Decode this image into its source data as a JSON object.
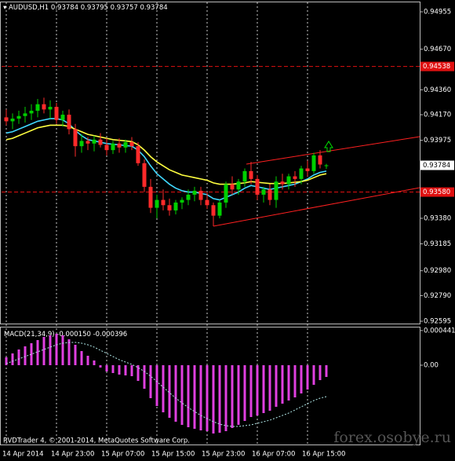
{
  "chart_data": [
    {
      "type": "candlestick",
      "symbol": "AUDUSD,H1",
      "categories": [
        "14 Apr 2014",
        null,
        null,
        null,
        null,
        null,
        null,
        null,
        "14 Apr 23:00",
        null,
        null,
        null,
        null,
        null,
        null,
        null,
        "15 Apr 07:00",
        null,
        null,
        null,
        null,
        null,
        null,
        null,
        "15 Apr 15:00",
        null,
        null,
        null,
        null,
        null,
        null,
        null,
        "15 Apr 23:00",
        null,
        null,
        null,
        null,
        null,
        null,
        null,
        "16 Apr 07:00",
        null,
        null,
        null,
        null,
        null,
        null,
        null,
        "16 Apr 15:00",
        null,
        null,
        null
      ],
      "open": [
        0.9415,
        0.9412,
        0.9414,
        0.9416,
        0.9418,
        0.942,
        0.9425,
        0.9421,
        0.9423,
        0.9413,
        0.9417,
        0.9406,
        0.9393,
        0.9397,
        0.9395,
        0.9398,
        0.9394,
        0.939,
        0.9395,
        0.9392,
        0.9396,
        0.9393,
        0.938,
        0.9362,
        0.9346,
        0.9352,
        0.9348,
        0.9344,
        0.935,
        0.9352,
        0.9356,
        0.9359,
        0.9352,
        0.9348,
        0.934,
        0.935,
        0.9364,
        0.936,
        0.9366,
        0.9374,
        0.9368,
        0.9356,
        0.936,
        0.9352,
        0.9366,
        0.9364,
        0.937,
        0.9368,
        0.9376,
        0.9374,
        0.9386,
        0.93784
      ],
      "high": [
        0.9421,
        0.9418,
        0.942,
        0.9423,
        0.9425,
        0.9429,
        0.943,
        0.9428,
        0.9426,
        0.942,
        0.9421,
        0.941,
        0.9402,
        0.94,
        0.9401,
        0.9403,
        0.9399,
        0.9397,
        0.9399,
        0.9398,
        0.94,
        0.9396,
        0.9383,
        0.9368,
        0.9356,
        0.936,
        0.9353,
        0.9352,
        0.9354,
        0.936,
        0.9362,
        0.9362,
        0.9358,
        0.935,
        0.9352,
        0.9366,
        0.937,
        0.9368,
        0.9376,
        0.9381,
        0.9371,
        0.9362,
        0.9364,
        0.937,
        0.9372,
        0.9372,
        0.9374,
        0.9378,
        0.9382,
        0.9388,
        0.939,
        0.93795
      ],
      "low": [
        0.9409,
        0.9406,
        0.941,
        0.9411,
        0.9413,
        0.9415,
        0.9418,
        0.9414,
        0.941,
        0.9408,
        0.9402,
        0.9385,
        0.9388,
        0.939,
        0.9389,
        0.9392,
        0.9386,
        0.9387,
        0.9388,
        0.9388,
        0.939,
        0.9378,
        0.9358,
        0.9342,
        0.9338,
        0.9344,
        0.934,
        0.9341,
        0.9345,
        0.9348,
        0.9351,
        0.9348,
        0.9345,
        0.9332,
        0.9338,
        0.9346,
        0.9356,
        0.9356,
        0.9362,
        0.9364,
        0.9352,
        0.935,
        0.9348,
        0.9346,
        0.936,
        0.936,
        0.9362,
        0.9364,
        0.937,
        0.9372,
        0.9376,
        0.93757
      ],
      "close": [
        0.9412,
        0.9414,
        0.9416,
        0.9418,
        0.942,
        0.9425,
        0.9421,
        0.9423,
        0.9413,
        0.9417,
        0.9406,
        0.9393,
        0.9397,
        0.9395,
        0.9398,
        0.9394,
        0.939,
        0.9395,
        0.9392,
        0.9396,
        0.9393,
        0.938,
        0.9362,
        0.9346,
        0.9352,
        0.9348,
        0.9344,
        0.935,
        0.9352,
        0.9356,
        0.9359,
        0.9352,
        0.9348,
        0.934,
        0.935,
        0.9364,
        0.936,
        0.9366,
        0.9374,
        0.9368,
        0.9356,
        0.936,
        0.9352,
        0.9366,
        0.9364,
        0.937,
        0.9368,
        0.9376,
        0.9374,
        0.9386,
        0.9379,
        0.93784
      ],
      "up_color": "#00d000",
      "down_color": "#ff2a2a",
      "series": [
        {
          "color": "#40d8ff",
          "values": [
            0.9403,
            0.9404,
            0.9406,
            0.9408,
            0.941,
            0.9412,
            0.9413,
            0.9414,
            0.9414,
            0.9413,
            0.941,
            0.9405,
            0.9401,
            0.9398,
            0.9397,
            0.9396,
            0.9395,
            0.93945,
            0.9394,
            0.93935,
            0.9393,
            0.939,
            0.9385,
            0.9378,
            0.9372,
            0.9368,
            0.9364,
            0.9361,
            0.9359,
            0.9358,
            0.9358,
            0.9357,
            0.9356,
            0.9353,
            0.9352,
            0.9354,
            0.9356,
            0.9358,
            0.9361,
            0.9363,
            0.9362,
            0.9361,
            0.936,
            0.9361,
            0.9362,
            0.9363,
            0.9364,
            0.9366,
            0.9368,
            0.9371,
            0.9373,
            0.9374
          ]
        },
        {
          "color": "#ffff40",
          "values": [
            0.9398,
            0.9399,
            0.9401,
            0.9403,
            0.9405,
            0.9407,
            0.9408,
            0.9409,
            0.9409,
            0.9409,
            0.9408,
            0.9406,
            0.9404,
            0.9402,
            0.9401,
            0.94,
            0.9399,
            0.9398,
            0.93975,
            0.9397,
            0.93965,
            0.9394,
            0.939,
            0.9385,
            0.9381,
            0.9378,
            0.9375,
            0.9373,
            0.9371,
            0.937,
            0.9369,
            0.9368,
            0.9367,
            0.9365,
            0.9364,
            0.9364,
            0.9364,
            0.93645,
            0.9365,
            0.9366,
            0.93655,
            0.9365,
            0.93645,
            0.93645,
            0.93645,
            0.9365,
            0.93655,
            0.9366,
            0.9367,
            0.9369,
            0.9371,
            0.9372
          ]
        }
      ],
      "levels": [
        {
          "value": 0.94538,
          "label": "0.94538"
        },
        {
          "value": 0.9358,
          "label": "0.93580"
        }
      ],
      "level_color": "#e01010",
      "ylim": [
        0.92577,
        0.95033
      ],
      "yticks": [
        {
          "value": 0.94955,
          "label": "0.94955"
        },
        {
          "value": 0.9467,
          "label": "0.94670"
        },
        {
          "value": 0.9436,
          "label": "0.94360"
        },
        {
          "value": 0.9417,
          "label": "0.94170"
        },
        {
          "value": 0.93975,
          "label": "0.93975"
        },
        {
          "value": 0.9338,
          "label": "0.93380"
        },
        {
          "value": 0.93185,
          "label": "0.93185"
        },
        {
          "value": 0.9298,
          "label": "0.92980"
        },
        {
          "value": 0.9279,
          "label": "0.92790"
        },
        {
          "value": 0.92595,
          "label": "0.92595"
        }
      ]
    },
    {
      "type": "bar",
      "title": "MACD(21,34,9)",
      "readout": [
        "-0.000150",
        "-0.000396"
      ],
      "color": "#e040e0",
      "values": [
        0.0001,
        0.00015,
        0.0002,
        0.00024,
        0.00028,
        0.00032,
        0.00036,
        0.00038,
        0.0004,
        0.00038,
        0.00033,
        0.00026,
        0.00018,
        0.00012,
        6e-05,
        -3e-05,
        -8e-05,
        -0.0001,
        -0.00012,
        -0.00013,
        -0.00014,
        -0.0002,
        -0.0003,
        -0.00042,
        -0.00052,
        -0.0006,
        -0.00067,
        -0.00072,
        -0.00076,
        -0.00079,
        -0.00081,
        -0.00083,
        -0.00084,
        -0.00087,
        -0.00086,
        -0.00084,
        -0.0008,
        -0.00076,
        -0.00071,
        -0.00066,
        -0.00064,
        -0.00061,
        -0.00058,
        -0.00053,
        -0.00049,
        -0.00045,
        -0.00041,
        -0.00036,
        -0.00031,
        -0.00025,
        -0.00019,
        -0.00015
      ],
      "signal": {
        "color": "#b0e8e8",
        "values": [
          2e-05,
          5e-05,
          8e-05,
          0.00011,
          0.00014,
          0.00017,
          0.0002,
          0.00023,
          0.00026,
          0.00028,
          0.00029,
          0.00029,
          0.00028,
          0.00026,
          0.00023,
          0.00019,
          0.00015,
          0.00011,
          7e-05,
          4e-05,
          1e-05,
          -3e-05,
          -8e-05,
          -0.00014,
          -0.00021,
          -0.00028,
          -0.00035,
          -0.00042,
          -0.00048,
          -0.00054,
          -0.00059,
          -0.00064,
          -0.00068,
          -0.00072,
          -0.00075,
          -0.00077,
          -0.00078,
          -0.00078,
          -0.00077,
          -0.00076,
          -0.00074,
          -0.00072,
          -0.0007,
          -0.00067,
          -0.00064,
          -0.00061,
          -0.00057,
          -0.00053,
          -0.00049,
          -0.00045,
          -0.00042,
          -0.0004
        ]
      },
      "ylim": [
        -0.001,
        0.00045
      ],
      "yticks": [
        {
          "value": 0.000441,
          "label": "0.000441"
        },
        {
          "value": 0,
          "label": "0.00"
        }
      ]
    }
  ],
  "footer": "RVDTrader 4, © 2001-2014, MetaQuotes Software Corp.",
  "watermark": "forex.osobye.ru"
}
